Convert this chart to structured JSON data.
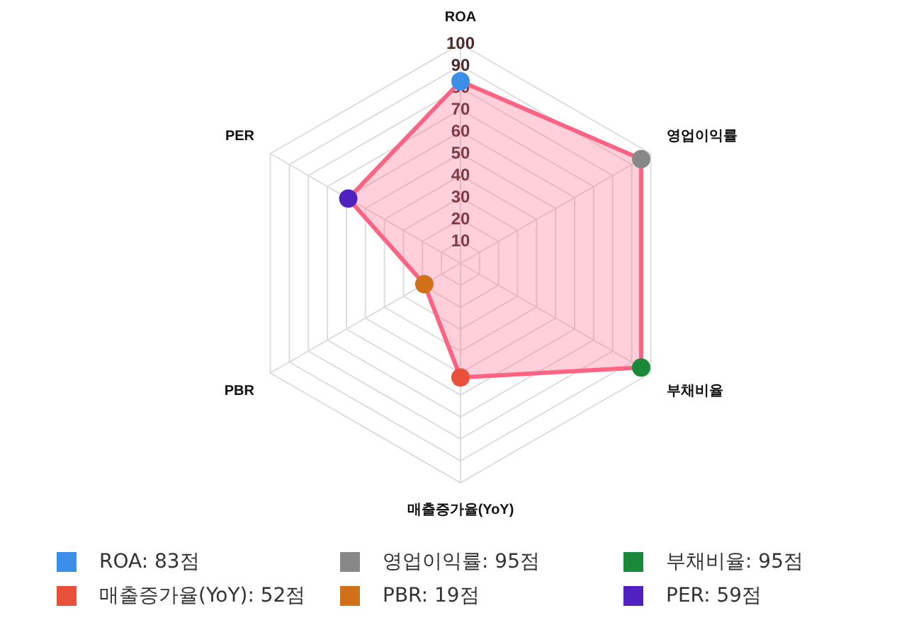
{
  "chart_data": {
    "type": "radar",
    "categories": [
      "ROA",
      "영업이익률",
      "부채비율",
      "매출증가율(YoY)",
      "PBR",
      "PER"
    ],
    "series": [
      {
        "color": "#ff6384",
        "values": [
          83,
          95,
          95,
          52,
          19,
          59
        ],
        "colors": [
          "#3b8fe8",
          "#888888",
          "#1a8a3a",
          "#e8503a",
          "#d07018",
          "#5020c0"
        ]
      }
    ],
    "annotations": [
      "ROA: 83점",
      "영업이익률: 95점",
      "부채비율: 95점",
      "매출증가율(YoY): 52점",
      "PBR: 19점",
      "PER: 59점"
    ],
    "ylim": [
      0,
      100
    ],
    "yticks": [
      10,
      20,
      30,
      40,
      50,
      60,
      70,
      80,
      90,
      100
    ],
    "grid": true,
    "marker": "circle"
  }
}
